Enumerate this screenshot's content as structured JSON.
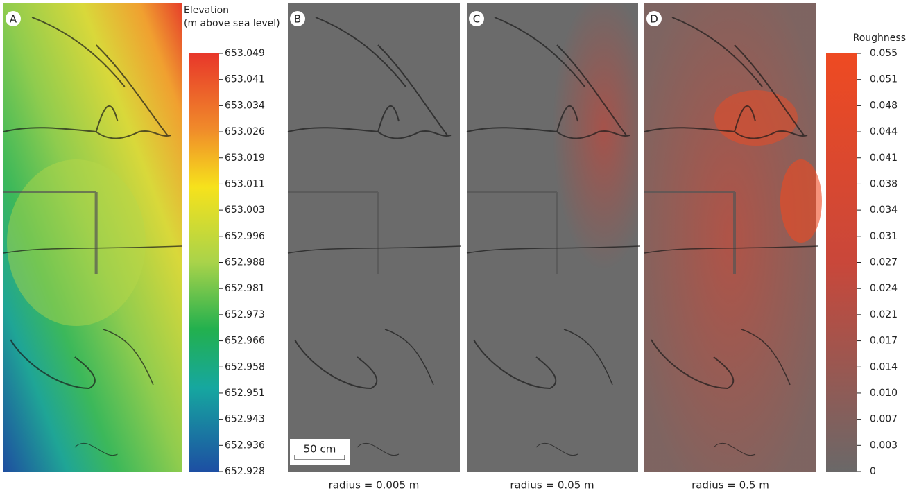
{
  "panels": [
    {
      "label": "A"
    },
    {
      "label": "B",
      "caption": "radius = 0.005 m"
    },
    {
      "label": "C",
      "caption": "radius = 0.05 m"
    },
    {
      "label": "D",
      "caption": "radius = 0.5 m"
    }
  ],
  "scale_bar": {
    "label": "50 cm"
  },
  "elevation_legend": {
    "title": "Elevation",
    "subtitle": "(m above sea level)",
    "ticks": [
      "653.049",
      "653.041",
      "653.034",
      "653.026",
      "653.019",
      "653.011",
      "653.003",
      "652.996",
      "652.988",
      "652.981",
      "652.973",
      "652.966",
      "652.958",
      "652.951",
      "652.943",
      "652.936",
      "652.928"
    ]
  },
  "roughness_legend": {
    "title": "Roughness",
    "ticks": [
      "0.055",
      "0.051",
      "0.048",
      "0.044",
      "0.041",
      "0.038",
      "0.034",
      "0.031",
      "0.027",
      "0.024",
      "0.021",
      "0.017",
      "0.014",
      "0.010",
      "0.007",
      "0.003",
      "0"
    ]
  }
}
